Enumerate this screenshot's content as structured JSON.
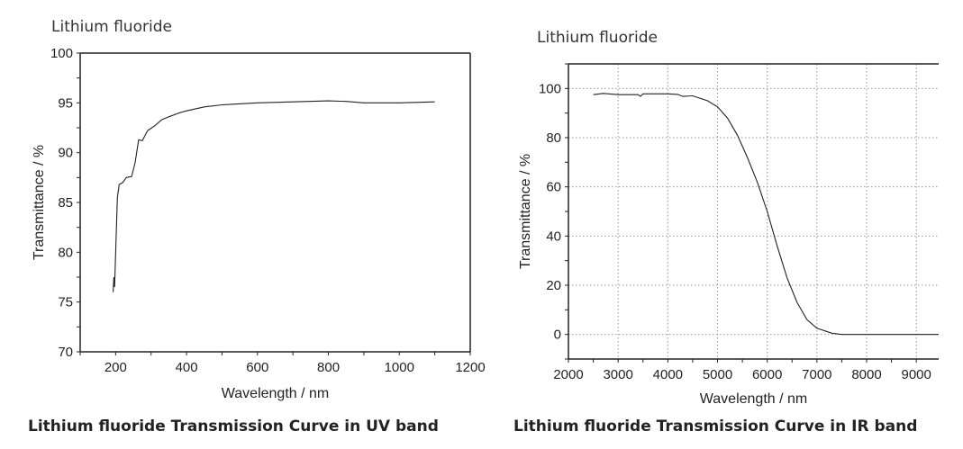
{
  "panels": [
    {
      "heading": "Lithium fluoride",
      "caption": "Lithium fluoride Transmission Curve in UV band"
    },
    {
      "heading": "Lithium fluoride",
      "caption": "Lithium fluoride Transmission Curve in IR band"
    }
  ],
  "chart_data": [
    {
      "type": "line",
      "title": "Lithium fluoride",
      "xlabel": "Wavelength / nm",
      "ylabel": "Transmittance / %",
      "xlim": [
        100,
        1200
      ],
      "ylim": [
        70,
        100
      ],
      "xticks": [
        200,
        400,
        600,
        800,
        1000,
        1200
      ],
      "yticks": [
        70,
        75,
        80,
        85,
        90,
        95,
        100
      ],
      "grid": false,
      "line_color": "#222222",
      "x": [
        193,
        195,
        197,
        200,
        205,
        210,
        220,
        230,
        245,
        255,
        265,
        275,
        290,
        310,
        330,
        350,
        380,
        400,
        450,
        500,
        600,
        700,
        800,
        850,
        900,
        1000,
        1100
      ],
      "y": [
        76,
        77.5,
        76.5,
        80,
        85.5,
        86.8,
        87,
        87.5,
        87.6,
        89,
        91.3,
        91.2,
        92.2,
        92.7,
        93.3,
        93.6,
        94,
        94.2,
        94.6,
        94.8,
        95,
        95.1,
        95.2,
        95.15,
        95,
        95,
        95.1
      ]
    },
    {
      "type": "line",
      "title": "Lithium fluoride",
      "xlabel": "Wavelength / nm",
      "ylabel": "Transmittance / %",
      "xlim": [
        2000,
        9450
      ],
      "ylim": [
        -10,
        110
      ],
      "xticks": [
        2000,
        3000,
        4000,
        5000,
        6000,
        7000,
        8000,
        9000
      ],
      "yticks": [
        0,
        20,
        40,
        60,
        80,
        100
      ],
      "grid": true,
      "line_color": "#222222",
      "x": [
        2500,
        2700,
        3000,
        3400,
        3450,
        3500,
        4000,
        4200,
        4300,
        4500,
        4800,
        5000,
        5200,
        5400,
        5600,
        5800,
        6000,
        6200,
        6400,
        6600,
        6800,
        7000,
        7300,
        7500,
        9450
      ],
      "y": [
        97.5,
        98,
        97.5,
        97.5,
        96.8,
        97.8,
        97.8,
        97.6,
        96.8,
        97,
        95,
        92.5,
        88,
        81,
        72,
        62,
        50,
        36,
        23,
        13,
        6,
        2.5,
        0.5,
        0,
        0
      ]
    }
  ]
}
